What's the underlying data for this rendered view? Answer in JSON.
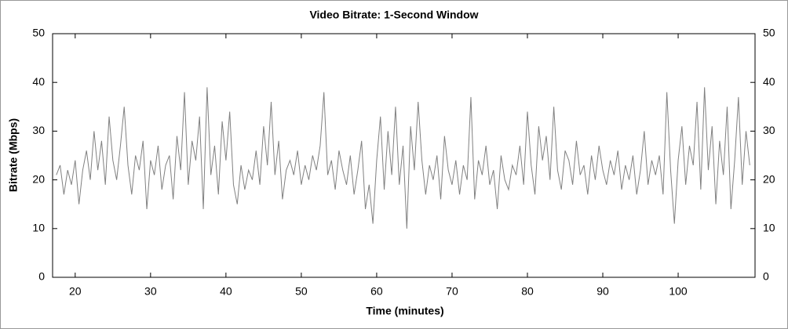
{
  "chart_data": {
    "type": "line",
    "title": "Video Bitrate: 1-Second Window",
    "x_label": "Time (minutes)",
    "y_label": "Bitrate (Mbps)",
    "x": [
      17.5,
      18,
      18.5,
      19,
      19.5,
      20,
      20.5,
      21,
      21.5,
      22,
      22.5,
      23,
      23.5,
      24,
      24.5,
      25,
      25.5,
      26,
      26.5,
      27,
      27.5,
      28,
      28.5,
      29,
      29.5,
      30,
      30.5,
      31,
      31.5,
      32,
      32.5,
      33,
      33.5,
      34,
      34.5,
      35,
      35.5,
      36,
      36.5,
      37,
      37.5,
      38,
      38.5,
      39,
      39.5,
      40,
      40.5,
      41,
      41.5,
      42,
      42.5,
      43,
      43.5,
      44,
      44.5,
      45,
      45.5,
      46,
      46.5,
      47,
      47.5,
      48,
      48.5,
      49,
      49.5,
      50,
      50.5,
      51,
      51.5,
      52,
      52.5,
      53,
      53.5,
      54,
      54.5,
      55,
      55.5,
      56,
      56.5,
      57,
      57.5,
      58,
      58.5,
      59,
      59.5,
      60,
      60.5,
      61,
      61.5,
      62,
      62.5,
      63,
      63.5,
      64,
      64.5,
      65,
      65.5,
      66,
      66.5,
      67,
      67.5,
      68,
      68.5,
      69,
      69.5,
      70,
      70.5,
      71,
      71.5,
      72,
      72.5,
      73,
      73.5,
      74,
      74.5,
      75,
      75.5,
      76,
      76.5,
      77,
      77.5,
      78,
      78.5,
      79,
      79.5,
      80,
      80.5,
      81,
      81.5,
      82,
      82.5,
      83,
      83.5,
      84,
      84.5,
      85,
      85.5,
      86,
      86.5,
      87,
      87.5,
      88,
      88.5,
      89,
      89.5,
      90,
      90.5,
      91,
      91.5,
      92,
      92.5,
      93,
      93.5,
      94,
      94.5,
      95,
      95.5,
      96,
      96.5,
      97,
      97.5,
      98,
      98.5,
      99,
      99.5,
      100,
      100.5,
      101,
      101.5,
      102,
      102.5,
      103,
      103.5,
      104,
      104.5,
      105,
      105.5,
      106,
      106.5,
      107,
      107.5,
      108,
      108.5,
      109,
      109.5
    ],
    "values": [
      21,
      23,
      17,
      22,
      19,
      24,
      15,
      22,
      26,
      20,
      30,
      22,
      28,
      19,
      33,
      24,
      20,
      27,
      35,
      23,
      17,
      25,
      22,
      28,
      14,
      24,
      21,
      27,
      18,
      23,
      25,
      16,
      29,
      22,
      38,
      19,
      28,
      24,
      33,
      14,
      39,
      21,
      27,
      17,
      32,
      24,
      34,
      19,
      15,
      23,
      18,
      22,
      20,
      26,
      19,
      31,
      23,
      36,
      21,
      28,
      16,
      22,
      24,
      21,
      26,
      19,
      23,
      20,
      25,
      22,
      27,
      38,
      21,
      24,
      18,
      26,
      22,
      19,
      25,
      17,
      22,
      28,
      14,
      19,
      11,
      24,
      33,
      18,
      30,
      21,
      35,
      19,
      27,
      10,
      31,
      22,
      36,
      24,
      17,
      23,
      20,
      25,
      16,
      29,
      22,
      19,
      24,
      17,
      23,
      20,
      37,
      16,
      24,
      21,
      27,
      19,
      22,
      14,
      25,
      20,
      18,
      23,
      21,
      27,
      19,
      34,
      23,
      17,
      31,
      24,
      29,
      20,
      35,
      22,
      18,
      26,
      24,
      19,
      28,
      21,
      23,
      17,
      25,
      20,
      27,
      22,
      19,
      24,
      21,
      26,
      18,
      23,
      20,
      25,
      17,
      22,
      30,
      19,
      24,
      21,
      25,
      17,
      38,
      22,
      11,
      24,
      31,
      19,
      27,
      23,
      36,
      18,
      39,
      22,
      31,
      15,
      28,
      21,
      35,
      14,
      24,
      37,
      19,
      30,
      23
    ],
    "color": "#808080",
    "xlim": [
      17,
      110.2
    ],
    "xticks": [
      20,
      30,
      40,
      50,
      60,
      70,
      80,
      90,
      100
    ],
    "ylim": [
      0,
      50
    ],
    "yticks": [
      0,
      10,
      20,
      30,
      40,
      50
    ]
  }
}
